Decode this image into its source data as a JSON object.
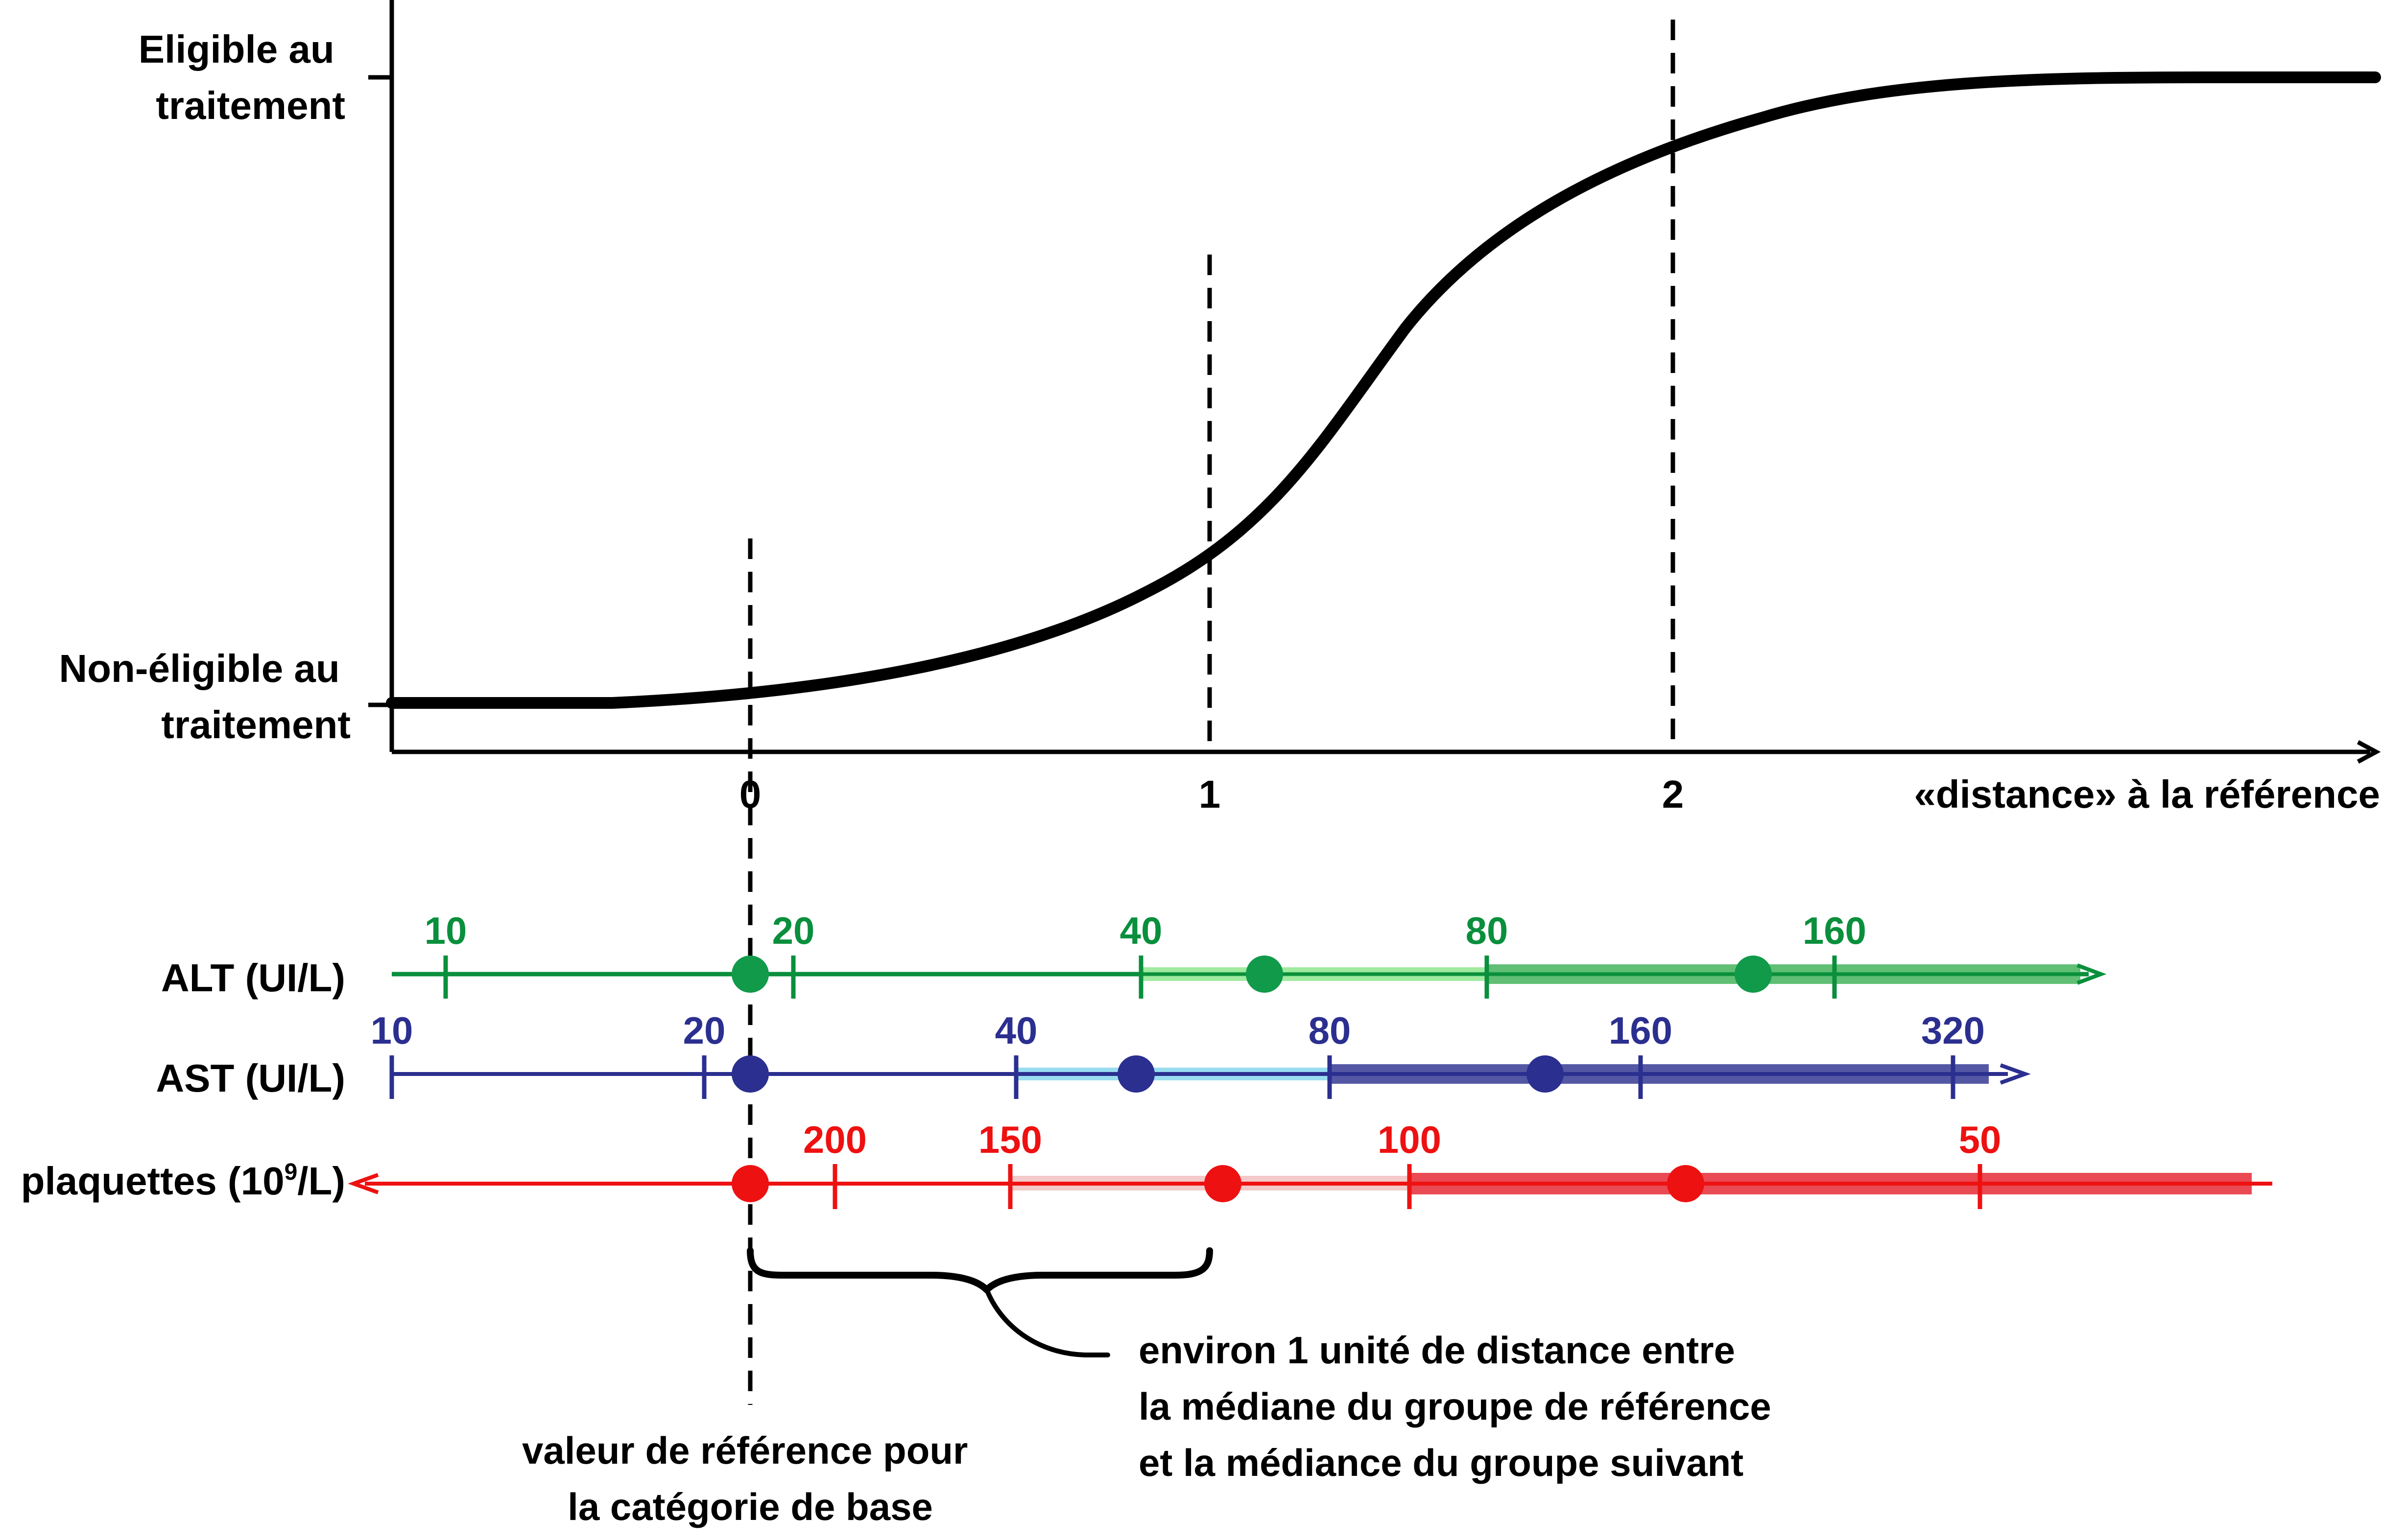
{
  "diagram": {
    "y_labels": {
      "top": [
        "Eligible au",
        "traitement"
      ],
      "bottom": [
        "Non-éligible au",
        "traitement"
      ]
    },
    "x_axis": {
      "label": "«distance» à la référence",
      "ticks": [
        "0",
        "1",
        "2"
      ]
    },
    "scales": [
      {
        "key": "alt",
        "label": "ALT (UI/L)",
        "color": "#0a8f3c",
        "ticks": [
          "10",
          "20",
          "40",
          "80",
          "160"
        ],
        "segments": [
          {
            "color": "#8fe88f",
            "shade": "light"
          },
          {
            "color": "#4fb865",
            "shade": "dark"
          }
        ],
        "medians": 3
      },
      {
        "key": "ast",
        "label": "AST (UI/L)",
        "color": "#2b2f8f",
        "ticks": [
          "10",
          "20",
          "40",
          "80",
          "160",
          "320"
        ],
        "segments": [
          {
            "color": "#8fd8ee",
            "shade": "light"
          },
          {
            "color": "#4b4f9f",
            "shade": "dark"
          }
        ],
        "medians": 3
      },
      {
        "key": "plaquettes",
        "label_main": "plaquettes (10",
        "label_sup": "9",
        "label_end": "/L)",
        "color": "#ee1111",
        "ticks": [
          "200",
          "150",
          "100",
          "50"
        ],
        "segments": [
          {
            "color": "#f3c3c3",
            "shade": "light"
          },
          {
            "color": "#e8404a",
            "shade": "dark"
          }
        ],
        "medians": 3
      }
    ],
    "brace_annotation": [
      "environ 1 unité de distance entre",
      "la médiane du groupe de référence",
      "et la médiance du groupe suivant"
    ],
    "reference_note": [
      "valeur de référence pour",
      "la catégorie de base"
    ]
  }
}
